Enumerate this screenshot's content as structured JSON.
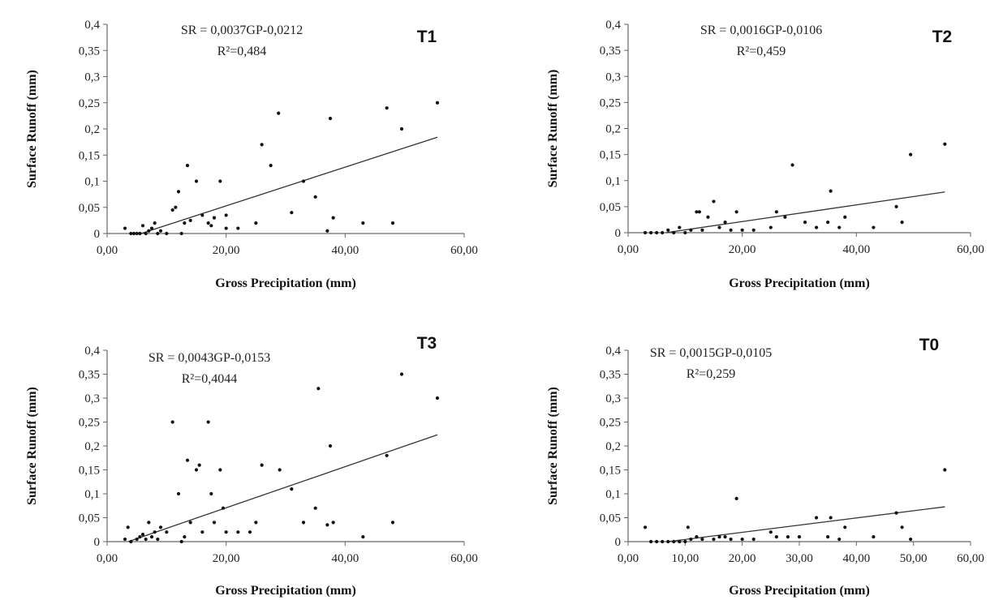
{
  "chart_data": [
    {
      "type": "scatter",
      "title": "T1",
      "equation": "SR = 0,0037GP-0,0212",
      "r2": "R²=0,484",
      "xlabel": "Gross Precipitation  (mm)",
      "ylabel": "Surface Runoff (mm)",
      "xlim": [
        0,
        60
      ],
      "ylim": [
        0,
        0.4
      ],
      "xticks": [
        "0,00",
        "20,00",
        "40,00",
        "60,00"
      ],
      "yticks": [
        "0",
        "0,05",
        "0,1",
        "0,15",
        "0,2",
        "0,25",
        "0,3",
        "0,35",
        "0,4"
      ],
      "grid": false,
      "trendline": {
        "slope": 0.0037,
        "intercept": -0.0212,
        "x_range": [
          5.7,
          55.5
        ]
      },
      "points": [
        [
          3,
          0.01
        ],
        [
          4,
          0
        ],
        [
          4.5,
          0
        ],
        [
          5,
          0
        ],
        [
          5.5,
          0
        ],
        [
          6,
          0.015
        ],
        [
          6.5,
          0
        ],
        [
          7,
          0.005
        ],
        [
          7.5,
          0.01
        ],
        [
          8,
          0.02
        ],
        [
          8.5,
          0
        ],
        [
          9,
          0.005
        ],
        [
          10,
          0
        ],
        [
          11,
          0.045
        ],
        [
          11.5,
          0.05
        ],
        [
          12,
          0.08
        ],
        [
          12.5,
          0
        ],
        [
          13,
          0.02
        ],
        [
          13.5,
          0.13
        ],
        [
          14,
          0.025
        ],
        [
          15,
          0.1
        ],
        [
          16,
          0.035
        ],
        [
          17,
          0.02
        ],
        [
          17.5,
          0.015
        ],
        [
          18,
          0.03
        ],
        [
          19,
          0.1
        ],
        [
          20,
          0.035
        ],
        [
          20,
          0.01
        ],
        [
          22,
          0.01
        ],
        [
          25,
          0.02
        ],
        [
          26,
          0.17
        ],
        [
          27.5,
          0.13
        ],
        [
          28.8,
          0.23
        ],
        [
          31,
          0.04
        ],
        [
          33,
          0.1
        ],
        [
          35,
          0.07
        ],
        [
          37,
          0.005
        ],
        [
          37.5,
          0.22
        ],
        [
          38,
          0.03
        ],
        [
          43,
          0.02
        ],
        [
          47,
          0.24
        ],
        [
          48,
          0.02
        ],
        [
          49.5,
          0.2
        ],
        [
          55.5,
          0.25
        ]
      ]
    },
    {
      "type": "scatter",
      "title": "T2",
      "equation": "SR = 0,0016GP-0,0106",
      "r2": "R²=0,459",
      "xlabel": "Gross Precipitation  (mm)",
      "ylabel": "Surface Runoff (mm)",
      "xlim": [
        0,
        60
      ],
      "ylim": [
        0,
        0.4
      ],
      "xticks": [
        "0,00",
        "20,00",
        "40,00",
        "60,00"
      ],
      "yticks": [
        "0",
        "0,05",
        "0,1",
        "0,15",
        "0,2",
        "0,25",
        "0,3",
        "0,35",
        "0,4"
      ],
      "grid": false,
      "trendline": {
        "slope": 0.0016,
        "intercept": -0.0106,
        "x_range": [
          6.6,
          55.5
        ]
      },
      "points": [
        [
          3,
          0
        ],
        [
          4,
          0
        ],
        [
          5,
          0
        ],
        [
          6,
          0
        ],
        [
          7,
          0.005
        ],
        [
          8,
          0
        ],
        [
          9,
          0.01
        ],
        [
          10,
          0
        ],
        [
          11,
          0.005
        ],
        [
          12,
          0.04
        ],
        [
          12.5,
          0.04
        ],
        [
          13,
          0.005
        ],
        [
          14,
          0.03
        ],
        [
          15,
          0.06
        ],
        [
          16,
          0.01
        ],
        [
          17,
          0.02
        ],
        [
          18,
          0.005
        ],
        [
          19,
          0.04
        ],
        [
          20,
          0.005
        ],
        [
          22,
          0.005
        ],
        [
          25,
          0.01
        ],
        [
          26,
          0.04
        ],
        [
          27.5,
          0.03
        ],
        [
          28.8,
          0.13
        ],
        [
          31,
          0.02
        ],
        [
          33,
          0.01
        ],
        [
          35,
          0.02
        ],
        [
          35.5,
          0.08
        ],
        [
          37,
          0.01
        ],
        [
          38,
          0.03
        ],
        [
          43,
          0.01
        ],
        [
          47,
          0.05
        ],
        [
          48,
          0.02
        ],
        [
          49.5,
          0.15
        ],
        [
          55.5,
          0.17
        ]
      ]
    },
    {
      "type": "scatter",
      "title": "T3",
      "equation": "SR = 0,0043GP-0,0153",
      "r2": "R²=0,4044",
      "xlabel": "Gross Precipitation  (mm)",
      "ylabel": "Surface Runoff (mm)",
      "xlim": [
        0,
        60
      ],
      "ylim": [
        0,
        0.4
      ],
      "xticks": [
        "0,00",
        "20,00",
        "40,00",
        "60,00"
      ],
      "yticks": [
        "0",
        "0,05",
        "0,1",
        "0,15",
        "0,2",
        "0,25",
        "0,3",
        "0,35",
        "0,4"
      ],
      "grid": false,
      "trendline": {
        "slope": 0.0043,
        "intercept": -0.0153,
        "x_range": [
          3.6,
          55.5
        ]
      },
      "points": [
        [
          3,
          0.005
        ],
        [
          3.5,
          0.03
        ],
        [
          4,
          0
        ],
        [
          5,
          0.005
        ],
        [
          5.5,
          0.01
        ],
        [
          6,
          0.015
        ],
        [
          6.5,
          0.005
        ],
        [
          7,
          0.04
        ],
        [
          7.5,
          0.01
        ],
        [
          8,
          0.02
        ],
        [
          8.5,
          0.005
        ],
        [
          9,
          0.03
        ],
        [
          10,
          0.02
        ],
        [
          11,
          0.25
        ],
        [
          12,
          0.1
        ],
        [
          12.5,
          0
        ],
        [
          13,
          0.01
        ],
        [
          13.5,
          0.17
        ],
        [
          14,
          0.04
        ],
        [
          15,
          0.15
        ],
        [
          15.5,
          0.16
        ],
        [
          16,
          0.02
        ],
        [
          17,
          0.25
        ],
        [
          17.5,
          0.1
        ],
        [
          18,
          0.04
        ],
        [
          19,
          0.15
        ],
        [
          19.5,
          0.07
        ],
        [
          20,
          0.02
        ],
        [
          22,
          0.02
        ],
        [
          24,
          0.02
        ],
        [
          25,
          0.04
        ],
        [
          26,
          0.16
        ],
        [
          29,
          0.15
        ],
        [
          31,
          0.11
        ],
        [
          33,
          0.04
        ],
        [
          35,
          0.07
        ],
        [
          35.5,
          0.32
        ],
        [
          37,
          0.035
        ],
        [
          37.5,
          0.2
        ],
        [
          38,
          0.04
        ],
        [
          43,
          0.01
        ],
        [
          47,
          0.18
        ],
        [
          48,
          0.04
        ],
        [
          49.5,
          0.35
        ],
        [
          55.5,
          0.3
        ]
      ]
    },
    {
      "type": "scatter",
      "title": "T0",
      "equation": "SR = 0,0015GP-0,0105",
      "r2": "R²=0,259",
      "xlabel": "Gross Precipitation  (mm)",
      "ylabel": "Surface Runoff (mm)",
      "xlim": [
        0,
        60
      ],
      "ylim": [
        0,
        0.4
      ],
      "xticks": [
        "0,00",
        "10,00",
        "20,00",
        "30,00",
        "40,00",
        "50,00",
        "60,00"
      ],
      "yticks": [
        "0",
        "0,05",
        "0,1",
        "0,15",
        "0,2",
        "0,25",
        "0,3",
        "0,35",
        "0,4"
      ],
      "grid": false,
      "trendline": {
        "slope": 0.0015,
        "intercept": -0.0105,
        "x_range": [
          7,
          55.5
        ]
      },
      "points": [
        [
          3,
          0.03
        ],
        [
          4,
          0
        ],
        [
          5,
          0
        ],
        [
          6,
          0
        ],
        [
          7,
          0
        ],
        [
          8,
          0
        ],
        [
          9,
          0
        ],
        [
          10,
          0
        ],
        [
          10.5,
          0.03
        ],
        [
          11,
          0.005
        ],
        [
          12,
          0.01
        ],
        [
          13,
          0.005
        ],
        [
          15,
          0.005
        ],
        [
          16,
          0.01
        ],
        [
          17,
          0.01
        ],
        [
          18,
          0.005
        ],
        [
          19,
          0.09
        ],
        [
          20,
          0.005
        ],
        [
          22,
          0.005
        ],
        [
          25,
          0.02
        ],
        [
          26,
          0.01
        ],
        [
          28,
          0.01
        ],
        [
          30,
          0.01
        ],
        [
          33,
          0.05
        ],
        [
          35,
          0.01
        ],
        [
          35.5,
          0.05
        ],
        [
          37,
          0.005
        ],
        [
          38,
          0.03
        ],
        [
          43,
          0.01
        ],
        [
          47,
          0.06
        ],
        [
          48,
          0.03
        ],
        [
          49.5,
          0.005
        ],
        [
          55.5,
          0.15
        ]
      ]
    }
  ]
}
